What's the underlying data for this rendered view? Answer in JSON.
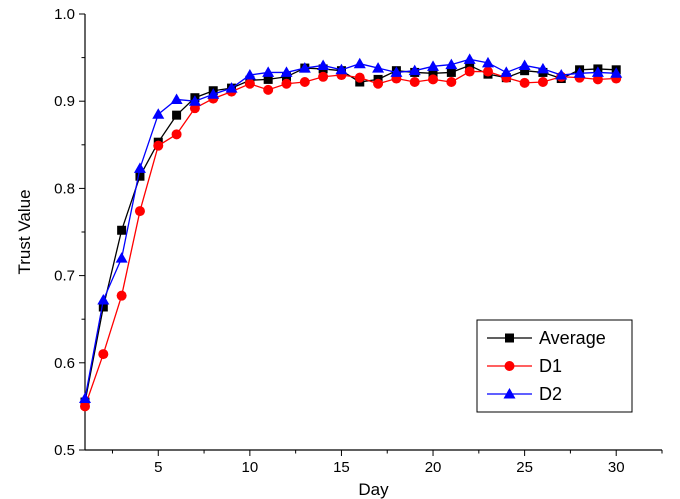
{
  "chart_data": {
    "type": "line",
    "title": "",
    "xlabel": "Day",
    "ylabel": "Trust Value",
    "xlim": [
      1,
      32.5
    ],
    "ylim": [
      0.5,
      1.0
    ],
    "x_ticks": [
      5,
      10,
      15,
      20,
      25,
      30
    ],
    "x_tick_labels": [
      "5",
      "10",
      "15",
      "20",
      "25",
      "30"
    ],
    "y_ticks": [
      0.5,
      0.6,
      0.7,
      0.8,
      0.9,
      1.0
    ],
    "y_tick_labels": [
      "0.5",
      "0.6",
      "0.7",
      "0.8",
      "0.9",
      "1.0"
    ],
    "grid": false,
    "legend_position": "bottom-right",
    "x": [
      1,
      2,
      3,
      4,
      5,
      6,
      7,
      8,
      9,
      10,
      11,
      12,
      13,
      14,
      15,
      16,
      17,
      18,
      19,
      20,
      21,
      22,
      23,
      24,
      25,
      26,
      27,
      28,
      29,
      30
    ],
    "series": [
      {
        "name": "Average",
        "color": "#000000",
        "marker": "square",
        "values": [
          0.555,
          0.664,
          0.752,
          0.814,
          0.853,
          0.884,
          0.904,
          0.912,
          0.915,
          0.924,
          0.925,
          0.928,
          0.938,
          0.937,
          0.935,
          0.922,
          0.925,
          0.935,
          0.933,
          0.932,
          0.933,
          0.941,
          0.931,
          0.927,
          0.935,
          0.933,
          0.926,
          0.936,
          0.937,
          0.936
        ]
      },
      {
        "name": "D1",
        "color": "#ff0000",
        "marker": "circle",
        "values": [
          0.55,
          0.61,
          0.677,
          0.774,
          0.849,
          0.862,
          0.892,
          0.903,
          0.911,
          0.92,
          0.913,
          0.92,
          0.922,
          0.928,
          0.93,
          0.927,
          0.92,
          0.926,
          0.922,
          0.925,
          0.922,
          0.934,
          0.934,
          0.927,
          0.921,
          0.922,
          0.928,
          0.927,
          0.925,
          0.926
        ]
      },
      {
        "name": "D2",
        "color": "#0000ff",
        "marker": "triangle",
        "values": [
          0.559,
          0.672,
          0.72,
          0.823,
          0.885,
          0.902,
          0.9,
          0.908,
          0.915,
          0.93,
          0.933,
          0.933,
          0.938,
          0.941,
          0.936,
          0.943,
          0.938,
          0.933,
          0.935,
          0.94,
          0.942,
          0.948,
          0.944,
          0.933,
          0.941,
          0.937,
          0.93,
          0.932,
          0.933,
          0.932
        ]
      }
    ]
  }
}
